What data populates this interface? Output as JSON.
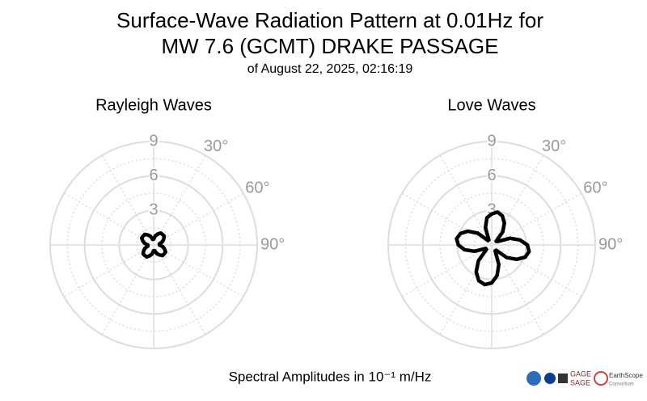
{
  "title": [
    "Surface-Wave Radiation Pattern at 0.01Hz for",
    "MW 7.6 (GCMT) DRAKE PASSAGE"
  ],
  "subtitle": "of August 22, 2025, 02:16:19",
  "footer": "Spectral Amplitudes in 10⁻¹ m/Hz",
  "logos": [
    "GAGE",
    "SAGE",
    "EarthScope",
    "Consortium"
  ],
  "chart_data": [
    {
      "type": "polar",
      "title": "Rayleigh Waves",
      "color": "#000000",
      "theta": [
        0,
        10,
        20,
        30,
        40,
        50,
        60,
        70,
        80,
        90,
        100,
        110,
        120,
        130,
        140,
        150,
        160,
        170,
        180,
        190,
        200,
        210,
        220,
        230,
        240,
        250,
        260,
        270,
        280,
        290,
        300,
        310,
        320,
        330,
        340,
        350
      ],
      "values": [
        0.5,
        0.8,
        1.0,
        1.2,
        1.2,
        1.2,
        1.0,
        0.8,
        0.5,
        0.5,
        0.8,
        1.0,
        1.2,
        1.2,
        1.2,
        1.0,
        0.8,
        0.5,
        0.5,
        0.8,
        1.0,
        1.2,
        1.2,
        1.2,
        1.0,
        0.8,
        0.5,
        0.5,
        0.8,
        1.0,
        1.2,
        1.2,
        1.2,
        1.0,
        0.8,
        0.5
      ],
      "rlim": [
        0,
        9
      ],
      "rticks": [
        3,
        6,
        9
      ],
      "minor_rticks": [
        1.5,
        4.5,
        7.5
      ],
      "thetaticks": [
        {
          "value": 30,
          "label": "30°"
        },
        {
          "value": 60,
          "label": "60°"
        },
        {
          "value": 90,
          "label": "90°"
        }
      ],
      "theta_grid": [
        0,
        30,
        60,
        90,
        120,
        150,
        180,
        210,
        240,
        270,
        300,
        330
      ]
    },
    {
      "type": "polar",
      "title": "Love Waves",
      "color": "#000000",
      "theta": [
        0,
        10,
        20,
        30,
        40,
        50,
        60,
        70,
        80,
        90,
        100,
        110,
        120,
        130,
        140,
        150,
        160,
        170,
        180,
        190,
        200,
        210,
        220,
        230,
        240,
        250,
        260,
        270,
        280,
        290,
        300,
        310,
        320,
        330,
        340,
        350
      ],
      "values": [
        2.7,
        2.9,
        2.7,
        2.2,
        1.5,
        0.5,
        0.6,
        1.7,
        2.5,
        3.1,
        3.3,
        3.1,
        2.5,
        1.7,
        0.6,
        0.6,
        1.8,
        2.7,
        3.3,
        3.5,
        3.3,
        2.7,
        1.8,
        0.6,
        0.6,
        1.6,
        2.4,
        2.9,
        3.1,
        2.9,
        2.4,
        1.6,
        0.5,
        0.5,
        1.6,
        2.4
      ],
      "rlim": [
        0,
        9
      ],
      "rticks": [
        3,
        6,
        9
      ],
      "minor_rticks": [
        1.5,
        4.5,
        7.5
      ],
      "thetaticks": [
        {
          "value": 30,
          "label": "30°"
        },
        {
          "value": 60,
          "label": "60°"
        },
        {
          "value": 90,
          "label": "90°"
        }
      ],
      "theta_grid": [
        0,
        30,
        60,
        90,
        120,
        150,
        180,
        210,
        240,
        270,
        300,
        330
      ]
    }
  ]
}
